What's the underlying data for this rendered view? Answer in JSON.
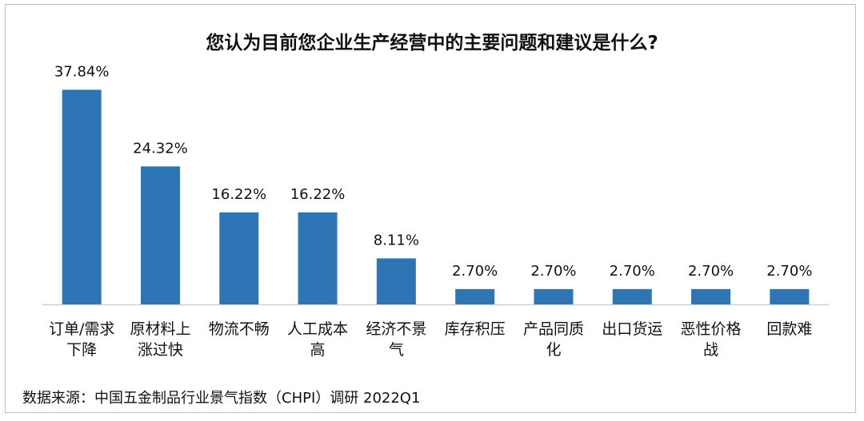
{
  "chart_data": {
    "type": "bar",
    "title": "您认为目前您企业生产经营中的主要问题和建议是什么?",
    "categories": [
      [
        "订单/需求",
        "下降"
      ],
      [
        "原材料上",
        "涨过快"
      ],
      [
        "物流不畅"
      ],
      [
        "人工成本",
        "高"
      ],
      [
        "经济不景",
        "气"
      ],
      [
        "库存积压"
      ],
      [
        "产品同质",
        "化"
      ],
      [
        "出口货运"
      ],
      [
        "恶性价格",
        "战"
      ],
      [
        "回款难"
      ]
    ],
    "values": [
      37.84,
      24.32,
      16.22,
      16.22,
      8.11,
      2.7,
      2.7,
      2.7,
      2.7,
      2.7
    ],
    "data_labels": [
      "37.84%",
      "24.32%",
      "16.22%",
      "16.22%",
      "8.11%",
      "2.70%",
      "2.70%",
      "2.70%",
      "2.70%",
      "2.70%"
    ],
    "ylim": [
      0,
      40
    ],
    "bar_color": "#2e75b6",
    "grid": false,
    "source": "数据来源：中国五金制品行业景气指数（CHPI）调研 2022Q1"
  }
}
